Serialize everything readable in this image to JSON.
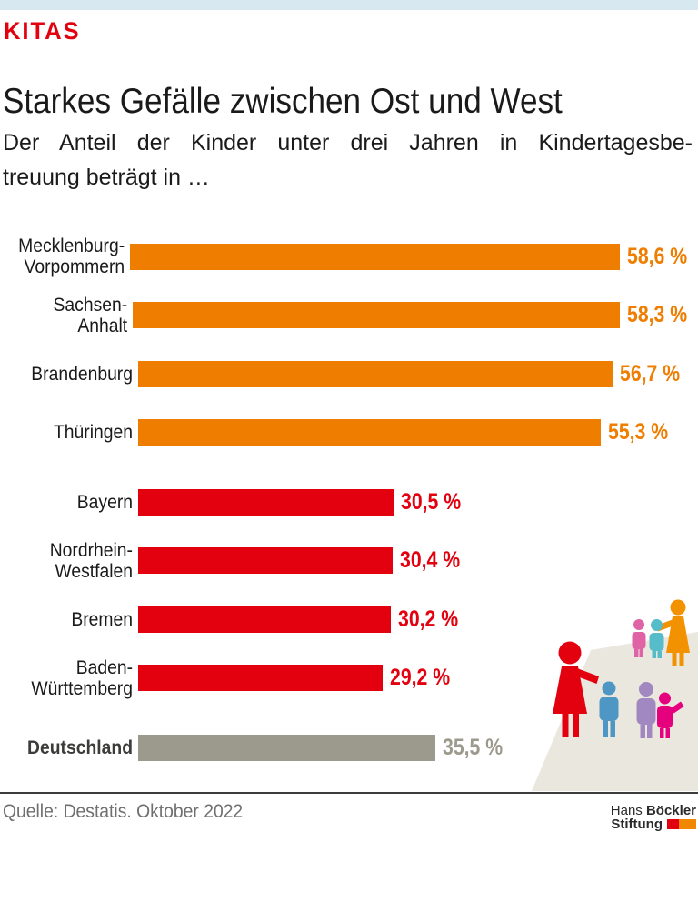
{
  "colors": {
    "accent_strip": "#D7E8F1",
    "orange": "#EF7D00",
    "red": "#E3000F",
    "gray": "#9C9A8D",
    "text": "#1A1A1A",
    "muted": "#706F6F",
    "rule": "#3C3C3B",
    "logo_red": "#E3000F",
    "logo_orange": "#F18700"
  },
  "header": {
    "kicker": "KITAS",
    "title": "Starkes Gefälle zwischen Ost und West",
    "subtitle_line1": "Der Anteil der Kinder unter drei Jahren in Kindertagesbe-",
    "subtitle_line2": "treuung beträgt in …"
  },
  "chart_data": {
    "type": "bar",
    "orientation": "horizontal",
    "unit": "%",
    "value_range": [
      0,
      60
    ],
    "title": "Anteil der Kinder unter drei Jahren in Kindertagesbetreuung",
    "categories": [
      "Mecklenburg-Vorpommern",
      "Sachsen-Anhalt",
      "Brandenburg",
      "Thüringen",
      "Bayern",
      "Nordrhein-Westfalen",
      "Bremen",
      "Baden-Württemberg",
      "Deutschland"
    ],
    "values": [
      58.6,
      58.3,
      56.7,
      55.3,
      30.5,
      30.4,
      30.2,
      29.2,
      35.5
    ],
    "rows": [
      {
        "label": "Mecklenburg-\nVorpommern",
        "value": 58.6,
        "value_label": "58,6 %",
        "color": "orange",
        "group": "ost",
        "label_bold": false
      },
      {
        "label": "Sachsen-Anhalt",
        "value": 58.3,
        "value_label": "58,3 %",
        "color": "orange",
        "group": "ost",
        "label_bold": false
      },
      {
        "label": "Brandenburg",
        "value": 56.7,
        "value_label": "56,7 %",
        "color": "orange",
        "group": "ost",
        "label_bold": false
      },
      {
        "label": "Thüringen",
        "value": 55.3,
        "value_label": "55,3 %",
        "color": "orange",
        "group": "ost",
        "label_bold": false
      },
      {
        "label": "Bayern",
        "value": 30.5,
        "value_label": "30,5 %",
        "color": "red",
        "group": "west",
        "label_bold": false
      },
      {
        "label": "Nordrhein-\nWestfalen",
        "value": 30.4,
        "value_label": "30,4 %",
        "color": "red",
        "group": "west",
        "label_bold": false
      },
      {
        "label": "Bremen",
        "value": 30.2,
        "value_label": "30,2 %",
        "color": "red",
        "group": "west",
        "label_bold": false
      },
      {
        "label": "Baden-\nWürttemberg",
        "value": 29.2,
        "value_label": "29,2 %",
        "color": "red",
        "group": "west",
        "label_bold": false
      },
      {
        "label": "Deutschland",
        "value": 35.5,
        "value_label": "35,5 %",
        "color": "gray",
        "group": "gesamt",
        "label_bold": true
      }
    ]
  },
  "footer": {
    "source": "Quelle: Destatis. Oktober 2022",
    "logo_word1": "Hans ",
    "logo_word2": "Böckler",
    "logo_word3": "Stiftung"
  },
  "illustration": {
    "description": "two educators with groups of small children standing on a beige floor",
    "colors": {
      "beige": "#EAE7DE",
      "fig_red": "#E3000F",
      "fig_orange": "#F39200",
      "fig_pink": "#E064A5",
      "fig_teal": "#56BCC9",
      "fig_blue": "#4E96C4",
      "fig_purple": "#A288C0",
      "fig_magenta": "#E5007D"
    }
  }
}
